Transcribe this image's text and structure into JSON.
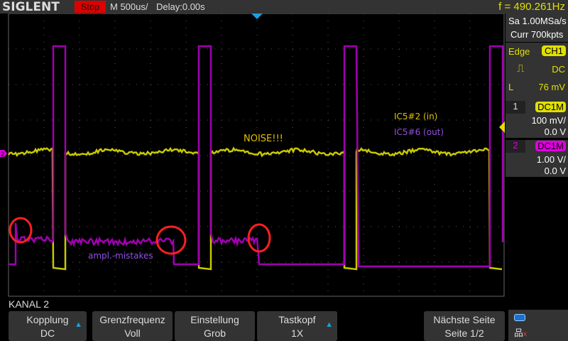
{
  "header": {
    "brand": "SIGLENT",
    "run_state": "Stop",
    "timebase": "M 500us/",
    "delay": "Delay:0.00s",
    "frequency": "f = 490.261Hz"
  },
  "acquisition": {
    "sample_rate": "Sa 1.00MSa/s",
    "memory": "Curr 700kpts"
  },
  "trigger": {
    "type": "Edge",
    "source": "CH1",
    "slope_icon": "rising-edge-icon",
    "coupling": "DC",
    "level_label": "L",
    "level": "76 mV"
  },
  "channels": [
    {
      "number": "1",
      "coupling": "DC1M",
      "scale": "100 mV/",
      "offset": "0.0 V",
      "color": "#e0e000"
    },
    {
      "number": "2",
      "coupling": "DC1M",
      "scale": "1.00 V/",
      "offset": "0.0 V",
      "color": "#e000e0"
    }
  ],
  "annotations": {
    "ch1_label": "IC5#2  (in)",
    "ch2_label": "IC5#6 (out)",
    "noise": "NOISE!!!",
    "mistakes": "ampl.-mistakes",
    "circle_color": "#ff2020"
  },
  "menu": {
    "title": "KANAL 2",
    "softkeys": [
      {
        "label": "Kopplung",
        "value": "DC",
        "arrow": true
      },
      {
        "label": "Grenzfrequenz",
        "value": "Voll",
        "arrow": false
      },
      {
        "label": "Einstellung",
        "value": "Grob",
        "arrow": false
      },
      {
        "label": "Tastkopf",
        "value": "1X",
        "arrow": true
      },
      {
        "label": "Nächste Seite",
        "value": "Seite 1/2",
        "arrow": false
      }
    ]
  },
  "status_icons": [
    "usb-icon",
    "network-disconnected-icon"
  ]
}
